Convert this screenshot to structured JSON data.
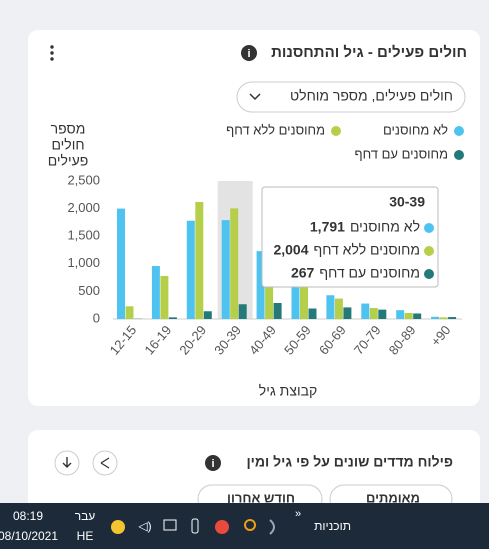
{
  "card": {
    "title": "חולים פעילים - גיל והתחסנות",
    "dropdown": "חולים פעילים, מספר מוחלט"
  },
  "chart_data": {
    "type": "bar",
    "y_axis_label": [
      "מספר",
      "חולים",
      "פעילים"
    ],
    "x_axis_label": "קבוצת גיל",
    "categories": [
      "12-15",
      "16-19",
      "20-29",
      "30-39",
      "40-49",
      "50-59",
      "60-69",
      "70-79",
      "80-89",
      "+90"
    ],
    "series": [
      {
        "name": "לא מחוסנים",
        "color": "#4fc3f0",
        "values": [
          2000,
          960,
          1780,
          1791,
          1230,
          900,
          430,
          280,
          160,
          40
        ]
      },
      {
        "name": "מחוסנים ללא דחף",
        "color": "#b5cf4b",
        "values": [
          230,
          780,
          2120,
          2004,
          600,
          680,
          370,
          200,
          110,
          30
        ]
      },
      {
        "name": "מחוסנים עם דחף",
        "color": "#237a78",
        "values": [
          5,
          30,
          140,
          267,
          290,
          190,
          210,
          170,
          100,
          35
        ]
      }
    ],
    "ylim": [
      0,
      2500
    ],
    "yticks": [
      0,
      500,
      {
        "value": 1000,
        "label": "1,000"
      },
      {
        "value": 1500,
        "label": "1,500"
      },
      {
        "value": 2000,
        "label": "2,000"
      },
      {
        "value": 2500,
        "label": "2,500"
      }
    ],
    "grid": false,
    "highlight": 3,
    "tooltip": {
      "title": "30-39",
      "value_labels": [
        "1,791",
        "2,004",
        "267"
      ]
    }
  },
  "card2": {
    "title": "פילוח מדדים שונים על פי גיל ומין",
    "buttons": [
      "מאומתים",
      "חודש אחרון"
    ]
  },
  "taskbar": {
    "programs": "תוכניות",
    "lang_top": "עבר",
    "lang": "HE",
    "time": "08:19",
    "date": "08/10/2021"
  }
}
